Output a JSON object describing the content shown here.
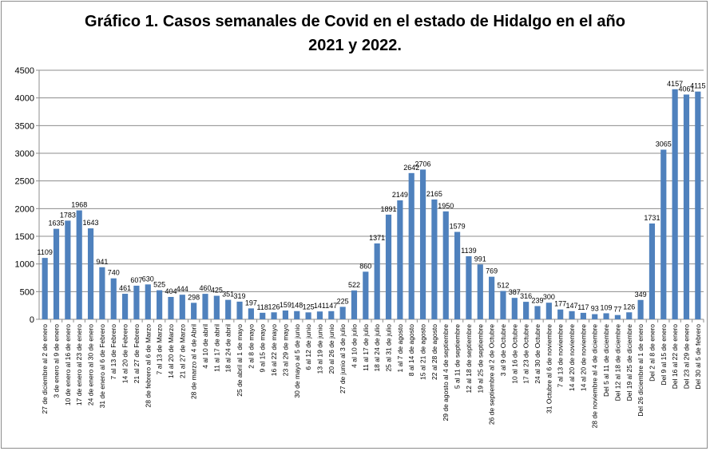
{
  "chart_data": {
    "type": "bar",
    "title": "Gráfico 1. Casos semanales de Covid en el estado de Hidalgo en el año 2021 y 2022.",
    "title_lines": [
      "Gráfico 1. Casos semanales de Covid en el estado de Hidalgo en el año",
      "2021 y 2022."
    ],
    "xlabel": "",
    "ylabel": "",
    "ylim": [
      0,
      4500
    ],
    "yticks": [
      0,
      500,
      1000,
      1500,
      2000,
      2500,
      3000,
      3500,
      4000,
      4500
    ],
    "grid": true,
    "legend": "none",
    "bar_color": "#4f81bd",
    "categories": [
      "27 de diciembre al 2 de enero",
      "3 de enero al 9 de enero",
      "10 de enero al 16 de enero",
      "17 de enero al 23 de enero",
      "24 de enero al 30 de enero",
      "31 de enero al 6 de Febrero",
      "7 al 13 de Febrero",
      "14 al 20 de Febrero",
      "21 al 27 de Febrero",
      "28 de febrero al 6 de Marzo",
      "7 al 13 de Marzo",
      "14 al 20 de Marzo",
      "21 al 27 de Marzo",
      "28 de marzo al 4 de Abril",
      "4 al 10 de abril",
      "11 al 17 de abril",
      "18 al 24 de abril",
      "25 de abril al 1 de mayo",
      "2 al 8 de mayo",
      "9 al 15 de mayo",
      "16 al 22 de mayo",
      "23 al 29 de mayo",
      "30 de mayo al 5 de junio",
      "6 al 12 de junio",
      "13 al 19 de junio",
      "20 al 26 de junio",
      "27 de junio al 3 de julio",
      "4 al 10 de julio",
      "11 al 17 de julio",
      "18 al 24 de julio",
      "25 al 31 de julio",
      "1 al 7 de agosto",
      "8 al 14 de agosto",
      "15 al 21 de agosto",
      "22 al 28 de agosto",
      "29 de agosto al 4 de septiembre",
      "5 al 11 de septiembre",
      "12 al 18 de septiembre",
      "19 al 25 de septiembre",
      "26 de septiembre al 2 de Octubre",
      "3 al 9 de Octubre",
      "10 al 16 de Octubre",
      "17 al 23 de Octubre",
      "24 al 30 de Octubre",
      "31 Octubre al 6 de noviembre",
      "7 al 13 de noviembre",
      "14 al 20 de noviembre",
      "14 al 20 de noviembre",
      "28 de noviembre al 4 de diciembre",
      "Del 5 al 11 de diciembre",
      "Del 12 al 18 de diciembre",
      "Del 19 al 25 de diciembre",
      "Del 26 diciembre al 1 de enero",
      "Del 2 al 8 de enero",
      "Del 9 al 15 de enero",
      "Del 16 al 22 de enero",
      "Del 23 al 29 de enero",
      "Del 30 al 5 de febrero"
    ],
    "values": [
      1109,
      1635,
      1783,
      1968,
      1643,
      941,
      740,
      461,
      607,
      630,
      525,
      404,
      444,
      298,
      460,
      425,
      351,
      319,
      197,
      118,
      126,
      159,
      148,
      125,
      141,
      147,
      225,
      522,
      860,
      1371,
      1891,
      2149,
      2642,
      2706,
      2165,
      1950,
      1579,
      1139,
      991,
      769,
      512,
      387,
      316,
      239,
      300,
      177,
      147,
      117,
      93,
      109,
      77,
      126,
      349,
      1731,
      3065,
      4157,
      4061,
      4115
    ]
  }
}
